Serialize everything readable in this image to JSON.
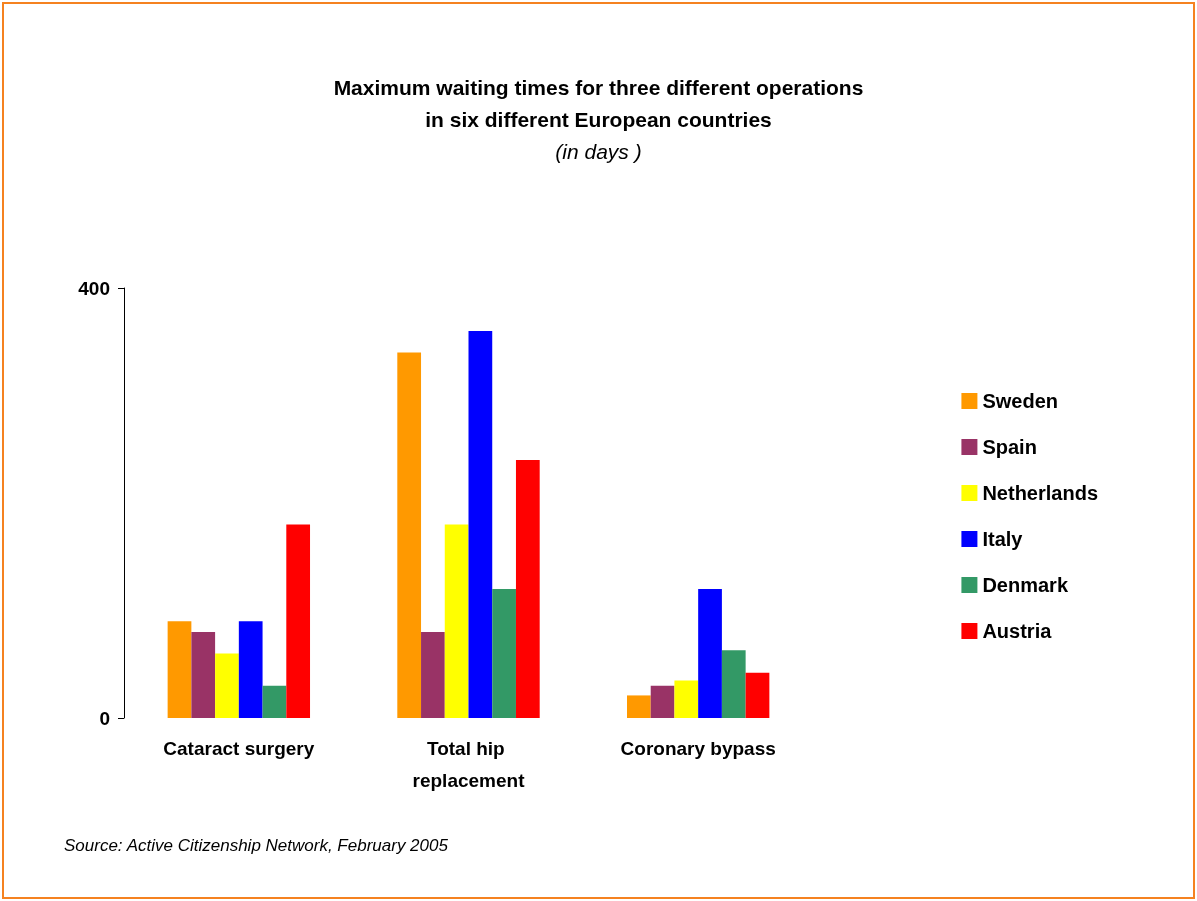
{
  "chart_data": {
    "type": "bar",
    "title": "Maximum waiting times for three different operations\nin six different European countries",
    "subtitle": "(in days )",
    "categories": [
      "Cataract surgery",
      "Total hip replacement",
      "Coronary bypass"
    ],
    "series": [
      {
        "name": "Sweden",
        "color": "#ff9900",
        "values": [
          90,
          340,
          21
        ]
      },
      {
        "name": "Spain",
        "color": "#993366",
        "values": [
          80,
          80,
          30
        ]
      },
      {
        "name": "Netherlands",
        "color": "#ffff00",
        "values": [
          60,
          180,
          35
        ]
      },
      {
        "name": "Italy",
        "color": "#0000ff",
        "values": [
          90,
          360,
          120
        ]
      },
      {
        "name": "Denmark",
        "color": "#339966",
        "values": [
          30,
          120,
          63
        ]
      },
      {
        "name": "Austria",
        "color": "#ff0000",
        "values": [
          180,
          240,
          42
        ]
      }
    ],
    "ylim": [
      0,
      400
    ],
    "yticks": [
      0,
      400
    ],
    "grid": false,
    "legend": "right",
    "annotations": [
      "Source: Active Citizenship Network, February 2005"
    ]
  }
}
